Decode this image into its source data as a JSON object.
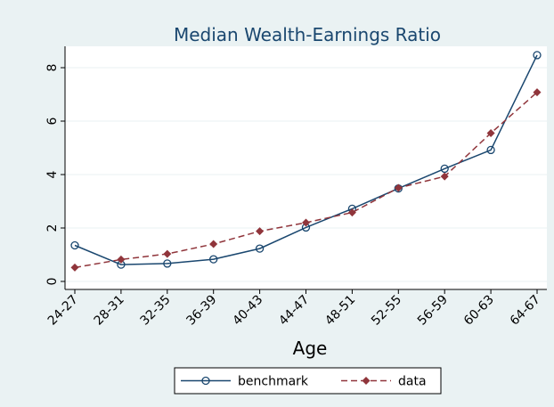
{
  "chart_data": {
    "type": "line",
    "title": "Median Wealth-Earnings Ratio",
    "x_label": "Age",
    "categories": [
      "24-27",
      "28-31",
      "32-35",
      "36-39",
      "40-43",
      "44-47",
      "48-51",
      "52-55",
      "56-59",
      "60-63",
      "64-67"
    ],
    "series": [
      {
        "name": "benchmark",
        "color": "#1a476f",
        "marker": "circle",
        "dash": false,
        "values": [
          1.35,
          0.63,
          0.67,
          0.83,
          1.23,
          2.02,
          2.72,
          3.48,
          4.22,
          4.92,
          8.47
        ]
      },
      {
        "name": "data",
        "color": "#90353b",
        "marker": "diamond",
        "dash": true,
        "values": [
          0.52,
          0.82,
          1.03,
          1.4,
          1.88,
          2.2,
          2.58,
          3.5,
          3.93,
          5.55,
          7.08
        ]
      }
    ],
    "ylim": [
      -0.3,
      8.8
    ],
    "yticks": [
      0,
      2,
      4,
      6,
      8
    ],
    "grid": true,
    "legend": "bottom"
  }
}
